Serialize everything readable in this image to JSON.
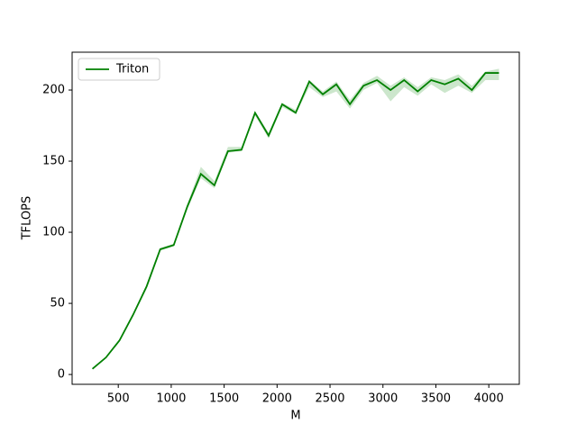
{
  "chart_data": {
    "type": "line",
    "x_label": "M",
    "y_label": "TFLOPS",
    "x": [
      256,
      384,
      512,
      640,
      768,
      896,
      1024,
      1152,
      1280,
      1408,
      1536,
      1664,
      1792,
      1920,
      2048,
      2176,
      2304,
      2432,
      2560,
      2688,
      2816,
      2944,
      3072,
      3200,
      3328,
      3456,
      3584,
      3712,
      3840,
      3968,
      4096
    ],
    "series": [
      {
        "name": "Triton",
        "color": "#008000",
        "values": [
          4,
          12,
          24,
          42,
          62,
          88,
          91,
          118,
          141,
          133,
          157,
          158,
          184,
          168,
          190,
          184,
          206,
          197,
          204,
          190,
          203,
          207,
          200,
          207,
          199,
          207,
          204,
          208,
          200,
          212,
          212
        ],
        "band_lower": [
          3.5,
          11.5,
          23,
          41,
          60,
          87,
          90,
          116,
          138,
          131,
          156,
          157,
          182,
          166,
          188,
          183,
          202,
          195,
          199,
          187,
          200,
          205,
          192,
          202,
          196,
          204,
          198,
          203,
          198,
          207,
          207
        ],
        "band_upper": [
          4.5,
          12.5,
          25,
          43,
          63,
          89,
          92,
          120,
          146,
          136,
          160,
          160,
          185,
          170,
          191,
          186,
          207,
          199,
          206,
          193,
          205,
          210,
          203,
          209,
          202,
          209,
          207,
          211,
          203,
          213,
          215
        ]
      }
    ],
    "xlim": [
      64,
      4288
    ],
    "xticks": [
      500,
      1000,
      1500,
      2000,
      2500,
      3000,
      3500,
      4000
    ],
    "ylim": [
      -6.9,
      226.6
    ],
    "yticks": [
      0,
      50,
      100,
      150,
      200
    ],
    "legend": "upper left",
    "band_opacity": 0.2
  }
}
